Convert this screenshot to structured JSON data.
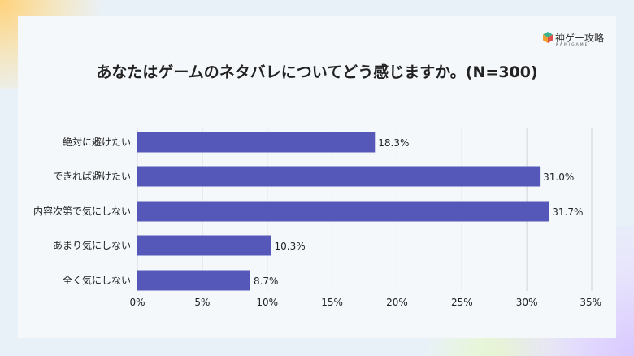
{
  "logo": {
    "text": "神ゲー攻略",
    "sub": "KAMIGAME"
  },
  "chart_data": {
    "type": "bar",
    "orientation": "horizontal",
    "title": "あなたはゲームのネタバレについてどう感じますか。(N=300)",
    "categories": [
      "絶対に避けたい",
      "できれば避けたい",
      "内容次第で気にしない",
      "あまり気にしない",
      "全く気にしない"
    ],
    "values": [
      18.3,
      31.0,
      31.7,
      10.3,
      8.7
    ],
    "data_labels": [
      "18.3%",
      "31.0%",
      "31.7%",
      "10.3%",
      "8.7%"
    ],
    "xlim": [
      0,
      35
    ],
    "xticks": [
      0,
      5,
      10,
      15,
      20,
      25,
      30,
      35
    ],
    "xtick_labels": [
      "0%",
      "5%",
      "10%",
      "15%",
      "20%",
      "25%",
      "30%",
      "35%"
    ],
    "grid": "vertical",
    "bar_color": "#5558b8"
  }
}
